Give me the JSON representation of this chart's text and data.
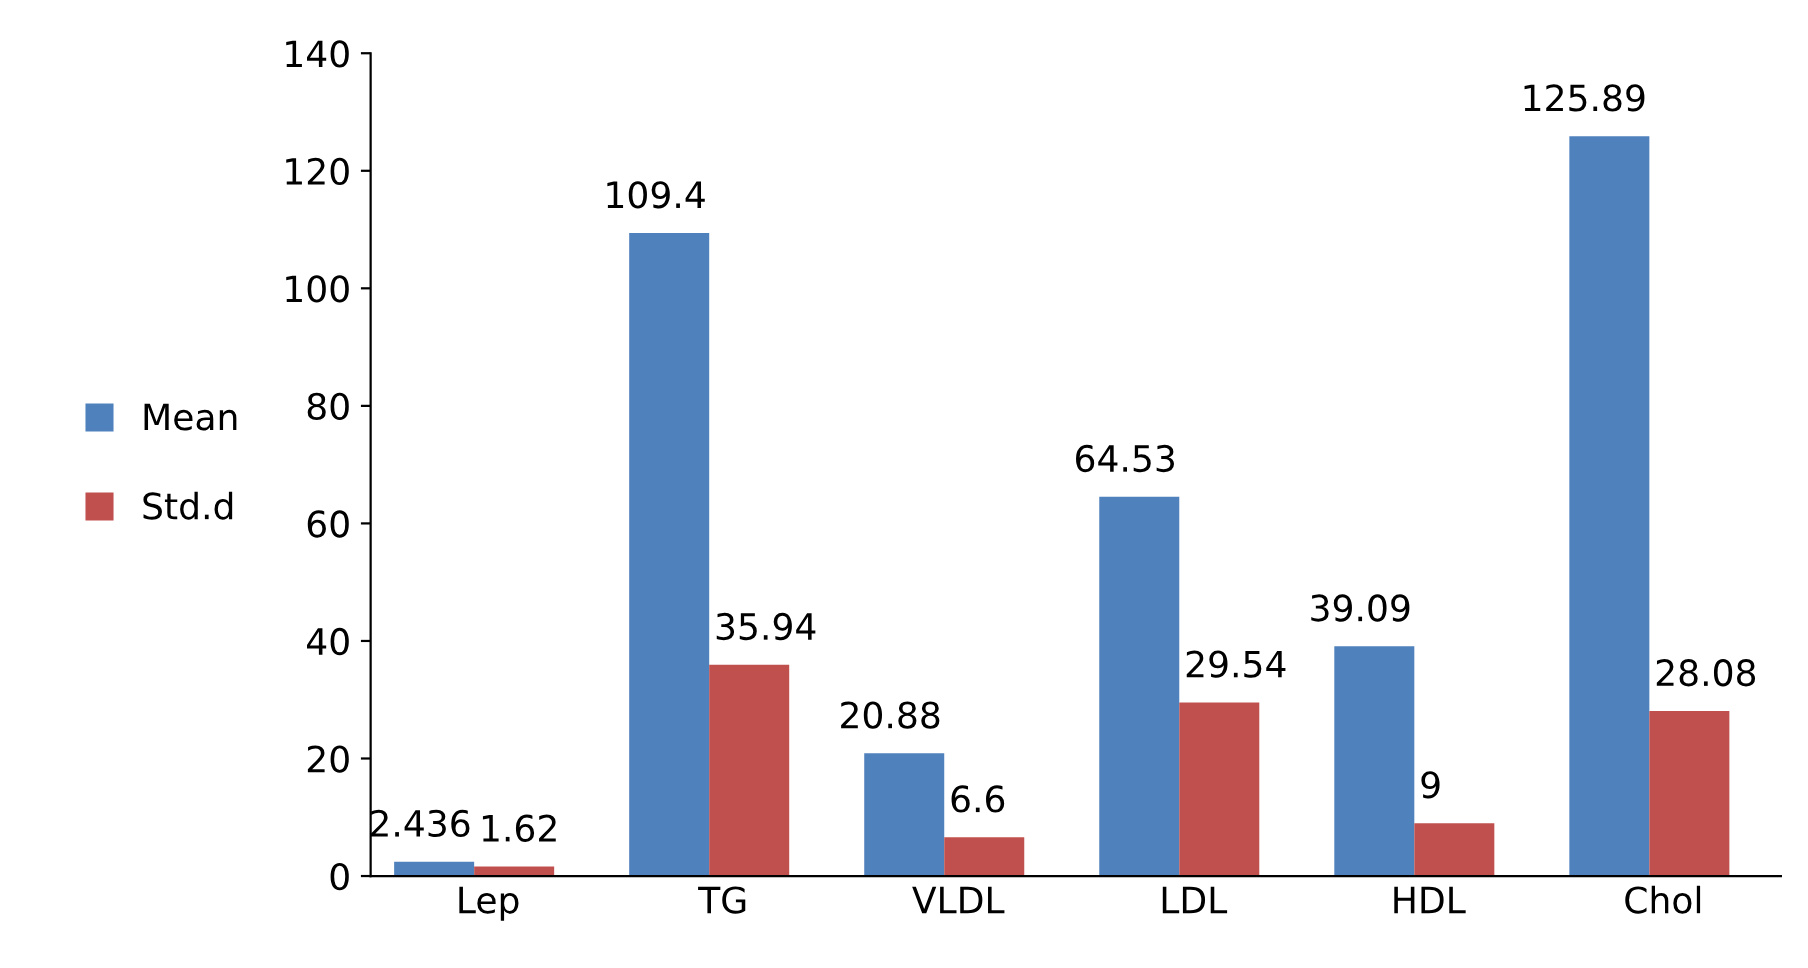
{
  "chart_data": {
    "type": "bar",
    "categories": [
      "Lep",
      "TG",
      "VLDL",
      "LDL",
      "HDL",
      "Chol"
    ],
    "series": [
      {
        "name": "Mean",
        "color": "#4f81bd",
        "values": [
          2.436,
          109.4,
          20.88,
          64.53,
          39.09,
          125.89
        ]
      },
      {
        "name": "Std.d",
        "color": "#c0504d",
        "values": [
          1.62,
          35.94,
          6.6,
          29.54,
          9,
          28.08
        ]
      }
    ],
    "ylim": [
      0,
      140
    ],
    "yticks": [
      0,
      20,
      40,
      60,
      80,
      100,
      120,
      140
    ],
    "data_labels": true,
    "legend": "left",
    "grid": false
  }
}
